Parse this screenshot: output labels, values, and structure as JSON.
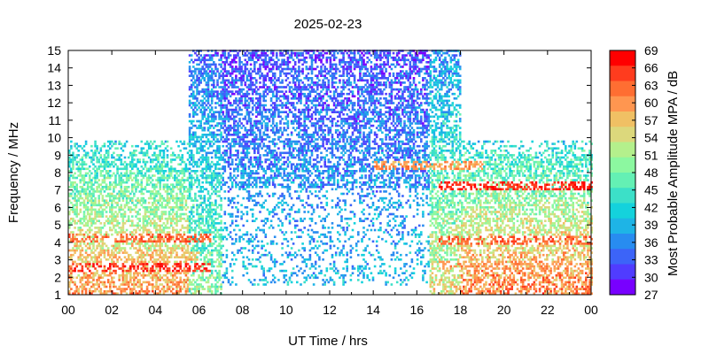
{
  "chart_data": {
    "type": "heatmap",
    "title": "2025-02-23",
    "xlabel": "UT Time / hrs",
    "ylabel": "Frequency / MHz",
    "xlim": [
      0,
      24
    ],
    "ylim": [
      1,
      15
    ],
    "x_ticks": [
      "00",
      "02",
      "04",
      "06",
      "08",
      "10",
      "12",
      "14",
      "16",
      "18",
      "20",
      "22",
      "00"
    ],
    "y_ticks": [
      "1",
      "2",
      "3",
      "4",
      "5",
      "6",
      "7",
      "8",
      "9",
      "10",
      "11",
      "12",
      "13",
      "14",
      "15"
    ],
    "grid": false,
    "colorbar": {
      "label": "Most Probable Amplitude MPA / dB",
      "range": [
        27,
        69
      ],
      "ticks": [
        "69",
        "66",
        "63",
        "60",
        "57",
        "54",
        "51",
        "48",
        "45",
        "42",
        "39",
        "36",
        "33",
        "30",
        "27"
      ],
      "colors": [
        "#ff0000",
        "#ff3c1e",
        "#ff6e32",
        "#ff9650",
        "#f0c064",
        "#dcd87c",
        "#b4f08c",
        "#8cf8a0",
        "#64f0b4",
        "#3ce0c8",
        "#14d2dc",
        "#1eb4e6",
        "#288cf0",
        "#3c64f8",
        "#503cff",
        "#7800ff"
      ]
    },
    "coverage_regions": [
      {
        "t_start": 0.0,
        "t_end": 5.5,
        "f_min": 1.0,
        "f_max": 9.8,
        "mpa_low_band": 60,
        "mpa_high_band": 42
      },
      {
        "t_start": 5.5,
        "t_end": 7.0,
        "f_min": 1.0,
        "f_max": 15.0,
        "mpa_low_band": 50,
        "mpa_high_band": 33
      },
      {
        "t_start": 7.0,
        "t_end": 16.5,
        "f_min": 1.5,
        "f_max": 15.0,
        "mpa_low_band": 40,
        "mpa_high_band": 32
      },
      {
        "t_start": 16.5,
        "t_end": 18.0,
        "f_min": 1.0,
        "f_max": 15.0,
        "mpa_low_band": 55,
        "mpa_high_band": 36
      },
      {
        "t_start": 18.0,
        "t_end": 24.0,
        "f_min": 1.0,
        "f_max": 9.8,
        "mpa_low_band": 62,
        "mpa_high_band": 42
      }
    ],
    "strong_bands": [
      {
        "t_start": 0.0,
        "t_end": 6.5,
        "f": 2.5,
        "mpa": 66
      },
      {
        "t_start": 0.0,
        "t_end": 6.5,
        "f": 4.2,
        "mpa": 63
      },
      {
        "t_start": 0.0,
        "t_end": 6.0,
        "f": 3.1,
        "mpa": 57
      },
      {
        "t_start": 17.0,
        "t_end": 24.0,
        "f": 7.2,
        "mpa": 66
      },
      {
        "t_start": 17.0,
        "t_end": 24.0,
        "f": 4.0,
        "mpa": 63
      },
      {
        "t_start": 17.0,
        "t_end": 24.0,
        "f": 2.6,
        "mpa": 60
      },
      {
        "t_start": 14.0,
        "t_end": 19.0,
        "f": 8.3,
        "mpa": 60
      }
    ]
  }
}
